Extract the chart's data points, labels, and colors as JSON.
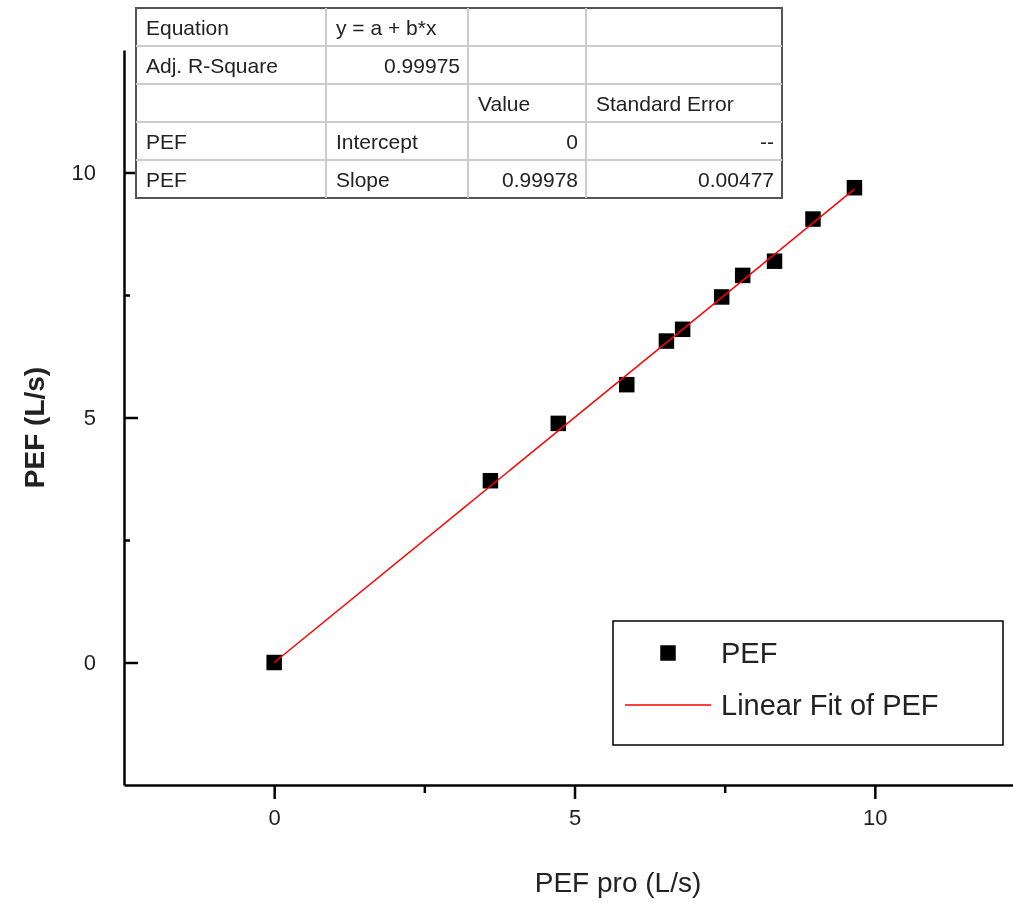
{
  "chart_data": {
    "type": "scatter",
    "xlabel": "PEF pro (L/s)",
    "ylabel": "PEF (L/s)",
    "xlim": [
      -2.5,
      12.3
    ],
    "ylim": [
      -2.5,
      12.5
    ],
    "xticks": [
      0,
      {
        "value": 2.5,
        "label": null
      },
      5,
      {
        "value": 7.5,
        "label": null
      },
      10
    ],
    "yticks": [
      0,
      {
        "value": 2.5,
        "label": null
      },
      5,
      {
        "value": 7.5,
        "label": null
      },
      10
    ],
    "grid": false,
    "legend": "bottom right",
    "marker": "square",
    "series": [
      {
        "name": "PEF",
        "color": "#000000",
        "x": [
          0,
          3.6,
          4.73,
          5.87,
          6.53,
          6.8,
          7.45,
          7.8,
          8.33,
          8.97,
          9.66
        ],
        "values": [
          0,
          3.71,
          4.88,
          5.67,
          6.56,
          6.8,
          7.46,
          7.9,
          8.19,
          9.05,
          9.69
        ]
      },
      {
        "name": "Linear Fit of PEF",
        "type": "line",
        "color": "#ff0000",
        "line_style": "solid",
        "marker": "none",
        "x": [
          0,
          9.66
        ],
        "values": [
          0,
          9.66
        ]
      }
    ],
    "annotations": [
      "Equation",
      "y = a + b*x",
      "Adj. R-Square",
      "0.99975",
      "Value",
      "Standard Error",
      "PEF",
      "Intercept",
      "0",
      "--",
      "PEF",
      "Slope",
      "0.99978",
      "0.00477"
    ]
  }
}
